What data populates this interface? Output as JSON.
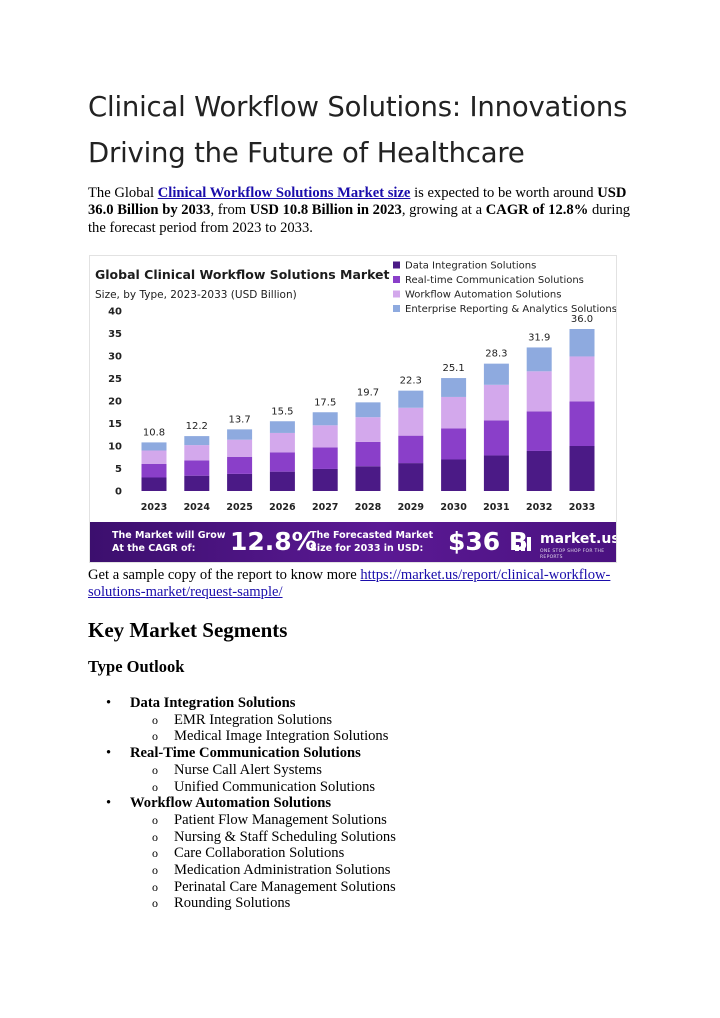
{
  "article": {
    "title": "Clinical Workflow Solutions: Innovations Driving the Future of Healthcare",
    "intro": {
      "p1": "The Global ",
      "link": "Clinical Workflow Solutions Market size",
      "p2": " is expected to be worth around ",
      "b1": "USD 36.0 Billion by 2033",
      "p3": ", from ",
      "b2": "USD 10.8 Billion in 2023",
      "p4": ", growing at a ",
      "b3": "CAGR of 12.8%",
      "p5": " during the forecast period from 2023 to 2033."
    },
    "sample": {
      "text": "Get a sample copy of the report to know more ",
      "link": "https://market.us/report/clinical-workflow-solutions-market/request-sample/ "
    },
    "segments_heading": "Key Market Segments",
    "type_heading": "Type Outlook",
    "categories": [
      {
        "name": "Data Integration Solutions",
        "items": [
          "EMR Integration Solutions",
          "Medical Image Integration Solutions"
        ]
      },
      {
        "name": "Real-Time Communication Solutions",
        "items": [
          "Nurse Call Alert Systems",
          "Unified Communication Solutions"
        ]
      },
      {
        "name": "Workflow Automation Solutions",
        "items": [
          "Patient Flow Management Solutions",
          "Nursing & Staff Scheduling Solutions",
          "Care Collaboration Solutions",
          "Medication Administration Solutions",
          "Perinatal Care Management Solutions",
          "Rounding Solutions"
        ]
      }
    ],
    "bullets": {
      "primary": "•",
      "secondary": "o"
    }
  },
  "chart_data": {
    "type": "bar",
    "stacked": true,
    "title": "Global Clinical Workflow Solutions Market",
    "subtitle": "Size, by Type, 2023-2033 (USD Billion)",
    "categories": [
      "2023",
      "2024",
      "2025",
      "2026",
      "2027",
      "2028",
      "2029",
      "2030",
      "2031",
      "2032",
      "2033"
    ],
    "totals": [
      10.8,
      12.2,
      13.7,
      15.5,
      17.5,
      19.7,
      22.3,
      25.1,
      28.3,
      31.9,
      36.0
    ],
    "total_labels": [
      "10.8",
      "12.2",
      "13.7",
      "15.5",
      "17.5",
      "19.7",
      "22.3",
      "25.1",
      "28.3",
      "31.9",
      "36.0"
    ],
    "series": [
      {
        "name": "Data Integration Solutions",
        "color": "#4b1a86",
        "values": [
          3.0,
          3.4,
          3.8,
          4.3,
          4.9,
          5.5,
          6.2,
          7.0,
          7.9,
          8.9,
          10.0
        ]
      },
      {
        "name": "Real-time Communication Solutions",
        "color": "#8a3fc9",
        "values": [
          3.0,
          3.4,
          3.8,
          4.3,
          4.8,
          5.4,
          6.1,
          6.9,
          7.8,
          8.8,
          9.9
        ]
      },
      {
        "name": "Workflow Automation Solutions",
        "color": "#d3a8ec",
        "values": [
          3.0,
          3.4,
          3.8,
          4.3,
          4.9,
          5.5,
          6.2,
          7.0,
          7.9,
          8.9,
          10.0
        ]
      },
      {
        "name": "Enterprise Reporting & Analytics Solutions",
        "color": "#8eaadf",
        "values": [
          1.8,
          2.0,
          2.3,
          2.6,
          2.9,
          3.3,
          3.8,
          4.2,
          4.7,
          5.3,
          6.1
        ]
      }
    ],
    "yticks": [
      "0",
      "5",
      "10",
      "15",
      "20",
      "25",
      "30",
      "35",
      "40"
    ],
    "ylim": [
      0,
      40
    ],
    "grid": false,
    "legend_position": "top-right"
  },
  "banner": {
    "text1": "The Market will Grow At the CAGR of:",
    "cagr": "12.8%",
    "text2": "The Forecasted Market Size for 2033 in USD:",
    "value": "$36 B",
    "logo": "market.us",
    "tagline": "ONE STOP SHOP FOR THE REPORTS",
    "logo_icon": "bar-signal-icon"
  }
}
